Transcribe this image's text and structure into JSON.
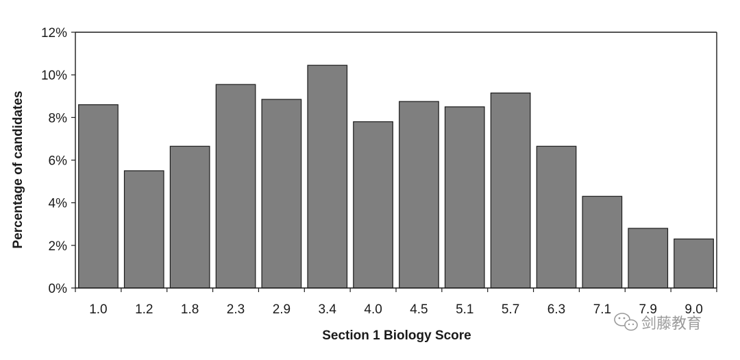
{
  "chart_data": {
    "type": "bar",
    "title": "",
    "xlabel": "Section 1 Biology Score",
    "ylabel": "Percentage of candidates",
    "categories": [
      "1.0",
      "1.2",
      "1.8",
      "2.3",
      "2.9",
      "3.4",
      "4.0",
      "4.5",
      "5.1",
      "5.7",
      "6.3",
      "7.1",
      "7.9",
      "9.0"
    ],
    "values": [
      8.6,
      5.5,
      6.65,
      9.55,
      8.85,
      10.45,
      7.8,
      8.75,
      8.5,
      9.15,
      6.65,
      4.3,
      2.8,
      2.3
    ],
    "ylim": [
      0,
      12
    ],
    "yticks": [
      "0%",
      "2%",
      "4%",
      "6%",
      "8%",
      "10%",
      "12%"
    ],
    "grid": false,
    "bar_color": "#7f7f7f"
  },
  "watermark": {
    "text": "剑藤教育",
    "icon": "wechat-icon"
  }
}
